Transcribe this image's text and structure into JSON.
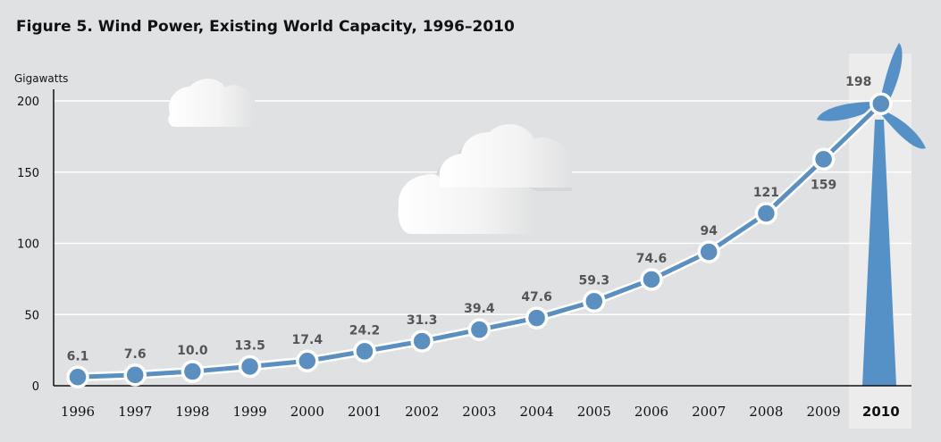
{
  "title": "Figure 5. Wind Power, Existing World Capacity, 1996–2010",
  "chart_data": {
    "type": "line",
    "title": "Figure 5. Wind Power, Existing World Capacity, 1996–2010",
    "ylabel": "Gigawatts",
    "xlabel": "",
    "categories": [
      "1996",
      "1997",
      "1998",
      "1999",
      "2000",
      "2001",
      "2002",
      "2003",
      "2004",
      "2005",
      "2006",
      "2007",
      "2008",
      "2009",
      "2010"
    ],
    "values": [
      6.1,
      7.6,
      10.0,
      13.5,
      17.4,
      24.2,
      31.3,
      39.4,
      47.6,
      59.3,
      74.6,
      94,
      121,
      159,
      198
    ],
    "labels": [
      "6.1",
      "7.6",
      "10.0",
      "13.5",
      "17.4",
      "24.2",
      "31.3",
      "39.4",
      "47.6",
      "59.3",
      "74.6",
      "94",
      "121",
      "159",
      "198"
    ],
    "ylim": [
      0,
      200
    ],
    "yticks": [
      0,
      50,
      100,
      150,
      200
    ],
    "grid": true,
    "highlight_category": "2010",
    "colors": {
      "background": "#e0e1e2",
      "highlight_band": "#ececec",
      "line": "#5b8fc0",
      "point": "#5b8fc0",
      "turbine": "#5591c7",
      "gridline": "#ffffff",
      "label": "#555555"
    },
    "decorations": [
      "cloud-icon",
      "cloud-icon",
      "cloud-icon",
      "wind-turbine-icon"
    ]
  }
}
